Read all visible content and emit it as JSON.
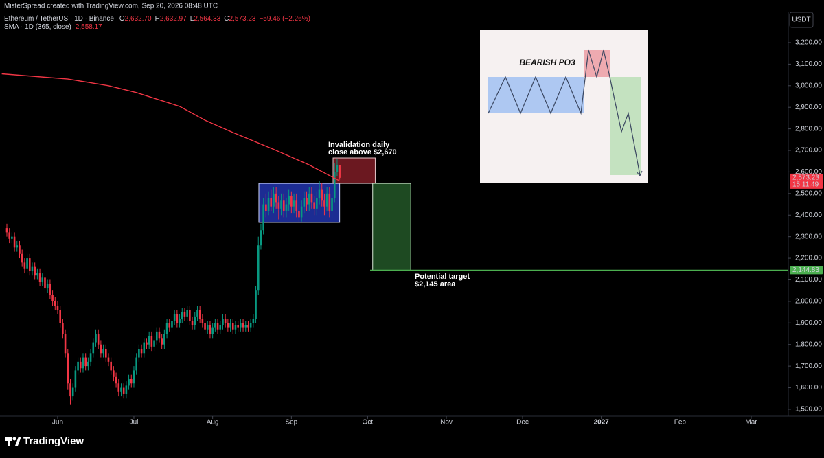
{
  "page": {
    "credit": "MisterSpread created with TradingView.com, Sep 20, 2026 08:48 UTC",
    "brand": "TradingView"
  },
  "chart_data": {
    "type": "candlestick",
    "symbol": "Ethereum / TetherUS · 1D · Binance",
    "quote": [
      {
        "k": "O",
        "v": "2,632.70"
      },
      {
        "k": "H",
        "v": "2,632.97"
      },
      {
        "k": "L",
        "v": "2,564.33"
      },
      {
        "k": "C",
        "v": "2,573.23"
      }
    ],
    "change": "−59.46 (−2.26%)",
    "quote_color": "#f23645",
    "y_unit": "USDT",
    "up_color": "#089981",
    "down_color": "#f23645",
    "xlim": [
      -22.7,
      287.6
    ],
    "xticks": [
      {
        "value": 0,
        "label": "Jun"
      },
      {
        "value": 30,
        "label": "Jul"
      },
      {
        "value": 61,
        "label": "Aug"
      },
      {
        "value": 92,
        "label": "Sep"
      },
      {
        "value": 122,
        "label": "Oct"
      },
      {
        "value": 153,
        "label": "Nov"
      },
      {
        "value": 183,
        "label": "Dec"
      },
      {
        "value": 214,
        "label": "2027"
      },
      {
        "value": 245,
        "label": "Feb"
      },
      {
        "value": 273,
        "label": "Mar"
      }
    ],
    "ylim": [
      1468,
      3340
    ],
    "yticks": [
      {
        "value": 1500,
        "label": "1,500.00"
      },
      {
        "value": 1600,
        "label": "1,600.00"
      },
      {
        "value": 1700,
        "label": "1,700.00"
      },
      {
        "value": 1800,
        "label": "1,800.00"
      },
      {
        "value": 1900,
        "label": "1,900.00"
      },
      {
        "value": 2000,
        "label": "2,000.00"
      },
      {
        "value": 2100,
        "label": "2,100.00"
      },
      {
        "value": 2200,
        "label": "2,200.00"
      },
      {
        "value": 2300,
        "label": "2,300.00"
      },
      {
        "value": 2400,
        "label": "2,400.00"
      },
      {
        "value": 2500,
        "label": "2,500.00"
      },
      {
        "value": 2600,
        "label": "2,600.00"
      },
      {
        "value": 2700,
        "label": "2,700.00"
      },
      {
        "value": 2800,
        "label": "2,800.00"
      },
      {
        "value": 2900,
        "label": "2,900.00"
      },
      {
        "value": 3000,
        "label": "3,000.00"
      },
      {
        "value": 3100,
        "label": "3,100.00"
      },
      {
        "value": 3200,
        "label": "3,200.00"
      }
    ],
    "grid": false,
    "ohlc": [
      [
        -20,
        2340,
        2360,
        2300,
        2320
      ],
      [
        -19,
        2320,
        2340,
        2270,
        2290
      ],
      [
        -18,
        2290,
        2320,
        2270,
        2300
      ],
      [
        -17,
        2300,
        2320,
        2230,
        2250
      ],
      [
        -16,
        2250,
        2280,
        2230,
        2260
      ],
      [
        -15,
        2260,
        2280,
        2200,
        2220
      ],
      [
        -14,
        2220,
        2240,
        2160,
        2180
      ],
      [
        -13,
        2180,
        2200,
        2130,
        2150
      ],
      [
        -12,
        2150,
        2220,
        2130,
        2200
      ],
      [
        -11,
        2200,
        2220,
        2120,
        2140
      ],
      [
        -10,
        2140,
        2180,
        2120,
        2160
      ],
      [
        -9,
        2160,
        2180,
        2100,
        2120
      ],
      [
        -8,
        2120,
        2150,
        2100,
        2130
      ],
      [
        -7,
        2130,
        2150,
        2070,
        2090
      ],
      [
        -6,
        2090,
        2130,
        2070,
        2110
      ],
      [
        -5,
        2110,
        2130,
        2040,
        2060
      ],
      [
        -4,
        2060,
        2100,
        2040,
        2080
      ],
      [
        -3,
        2080,
        2100,
        2010,
        2030
      ],
      [
        -2,
        2030,
        2050,
        1980,
        2000
      ],
      [
        -1,
        2000,
        2020,
        1960,
        1980
      ],
      [
        0,
        1980,
        2000,
        1940,
        1960
      ],
      [
        1,
        1960,
        1980,
        1880,
        1900
      ],
      [
        2,
        1900,
        1920,
        1830,
        1850
      ],
      [
        3,
        1850,
        1870,
        1740,
        1760
      ],
      [
        4,
        1760,
        1780,
        1590,
        1620
      ],
      [
        5,
        1620,
        1640,
        1520,
        1560
      ],
      [
        6,
        1560,
        1620,
        1540,
        1600
      ],
      [
        7,
        1600,
        1700,
        1580,
        1680
      ],
      [
        8,
        1680,
        1740,
        1660,
        1720
      ],
      [
        9,
        1720,
        1740,
        1670,
        1690
      ],
      [
        10,
        1690,
        1760,
        1670,
        1740
      ],
      [
        11,
        1740,
        1760,
        1680,
        1700
      ],
      [
        12,
        1700,
        1740,
        1680,
        1720
      ],
      [
        13,
        1720,
        1780,
        1700,
        1760
      ],
      [
        14,
        1760,
        1830,
        1740,
        1810
      ],
      [
        15,
        1810,
        1870,
        1790,
        1850
      ],
      [
        16,
        1850,
        1870,
        1780,
        1800
      ],
      [
        17,
        1800,
        1820,
        1740,
        1760
      ],
      [
        18,
        1760,
        1800,
        1740,
        1780
      ],
      [
        19,
        1780,
        1800,
        1720,
        1740
      ],
      [
        20,
        1740,
        1760,
        1700,
        1720
      ],
      [
        21,
        1720,
        1740,
        1660,
        1680
      ],
      [
        22,
        1680,
        1700,
        1630,
        1650
      ],
      [
        23,
        1650,
        1670,
        1600,
        1620
      ],
      [
        24,
        1620,
        1640,
        1560,
        1580
      ],
      [
        25,
        1580,
        1620,
        1560,
        1600
      ],
      [
        26,
        1600,
        1620,
        1550,
        1570
      ],
      [
        27,
        1570,
        1630,
        1550,
        1610
      ],
      [
        28,
        1610,
        1660,
        1590,
        1640
      ],
      [
        29,
        1640,
        1660,
        1600,
        1620
      ],
      [
        30,
        1620,
        1700,
        1600,
        1680
      ],
      [
        31,
        1680,
        1760,
        1660,
        1740
      ],
      [
        32,
        1740,
        1800,
        1720,
        1780
      ],
      [
        33,
        1780,
        1800,
        1740,
        1760
      ],
      [
        34,
        1760,
        1830,
        1740,
        1810
      ],
      [
        35,
        1810,
        1830,
        1780,
        1800
      ],
      [
        36,
        1800,
        1860,
        1780,
        1840
      ],
      [
        37,
        1840,
        1860,
        1770,
        1790
      ],
      [
        38,
        1790,
        1840,
        1770,
        1820
      ],
      [
        39,
        1820,
        1880,
        1800,
        1860
      ],
      [
        40,
        1860,
        1880,
        1810,
        1830
      ],
      [
        41,
        1830,
        1850,
        1780,
        1800
      ],
      [
        42,
        1800,
        1870,
        1780,
        1850
      ],
      [
        43,
        1850,
        1920,
        1830,
        1900
      ],
      [
        44,
        1900,
        1920,
        1860,
        1880
      ],
      [
        45,
        1880,
        1930,
        1860,
        1910
      ],
      [
        46,
        1910,
        1960,
        1890,
        1940
      ],
      [
        47,
        1940,
        1960,
        1880,
        1900
      ],
      [
        48,
        1900,
        1940,
        1880,
        1920
      ],
      [
        49,
        1920,
        1970,
        1900,
        1950
      ],
      [
        50,
        1950,
        1970,
        1910,
        1930
      ],
      [
        51,
        1930,
        1980,
        1910,
        1960
      ],
      [
        52,
        1960,
        1980,
        1890,
        1910
      ],
      [
        53,
        1910,
        1930,
        1870,
        1890
      ],
      [
        54,
        1890,
        1950,
        1870,
        1930
      ],
      [
        55,
        1930,
        1980,
        1910,
        1960
      ],
      [
        56,
        1960,
        1980,
        1900,
        1920
      ],
      [
        57,
        1920,
        1940,
        1880,
        1900
      ],
      [
        58,
        1900,
        1920,
        1850,
        1870
      ],
      [
        59,
        1870,
        1910,
        1850,
        1890
      ],
      [
        60,
        1890,
        1910,
        1830,
        1850
      ],
      [
        61,
        1850,
        1900,
        1830,
        1880
      ],
      [
        62,
        1880,
        1920,
        1860,
        1900
      ],
      [
        63,
        1900,
        1920,
        1850,
        1870
      ],
      [
        64,
        1870,
        1910,
        1850,
        1890
      ],
      [
        65,
        1890,
        1940,
        1870,
        1920
      ],
      [
        66,
        1920,
        1940,
        1880,
        1900
      ],
      [
        67,
        1900,
        1920,
        1860,
        1880
      ],
      [
        68,
        1880,
        1920,
        1860,
        1900
      ],
      [
        69,
        1900,
        1920,
        1850,
        1870
      ],
      [
        70,
        1870,
        1910,
        1850,
        1890
      ],
      [
        71,
        1890,
        1910,
        1860,
        1880
      ],
      [
        72,
        1880,
        1920,
        1860,
        1900
      ],
      [
        73,
        1900,
        1920,
        1860,
        1880
      ],
      [
        74,
        1880,
        1910,
        1860,
        1890
      ],
      [
        75,
        1890,
        1910,
        1860,
        1880
      ],
      [
        76,
        1880,
        1920,
        1860,
        1900
      ],
      [
        77,
        1900,
        1940,
        1880,
        1920
      ],
      [
        78,
        1920,
        2070,
        1900,
        2050
      ],
      [
        79,
        2050,
        2300,
        2030,
        2260
      ],
      [
        80,
        2260,
        2360,
        2240,
        2330
      ],
      [
        81,
        2330,
        2480,
        2310,
        2450
      ],
      [
        82,
        2450,
        2500,
        2390,
        2420
      ],
      [
        83,
        2420,
        2510,
        2400,
        2480
      ],
      [
        84,
        2480,
        2520,
        2420,
        2440
      ],
      [
        85,
        2440,
        2530,
        2410,
        2500
      ],
      [
        86,
        2500,
        2530,
        2430,
        2460
      ],
      [
        87,
        2460,
        2490,
        2380,
        2430
      ],
      [
        88,
        2430,
        2500,
        2400,
        2470
      ],
      [
        89,
        2470,
        2500,
        2390,
        2420
      ],
      [
        90,
        2420,
        2480,
        2390,
        2450
      ],
      [
        91,
        2450,
        2520,
        2420,
        2490
      ],
      [
        92,
        2490,
        2510,
        2410,
        2440
      ],
      [
        93,
        2440,
        2500,
        2410,
        2470
      ],
      [
        94,
        2470,
        2500,
        2390,
        2420
      ],
      [
        95,
        2420,
        2450,
        2370,
        2390
      ],
      [
        96,
        2390,
        2470,
        2370,
        2440
      ],
      [
        97,
        2440,
        2510,
        2410,
        2480
      ],
      [
        98,
        2480,
        2510,
        2420,
        2450
      ],
      [
        99,
        2450,
        2530,
        2420,
        2500
      ],
      [
        100,
        2500,
        2530,
        2430,
        2460
      ],
      [
        101,
        2460,
        2490,
        2400,
        2430
      ],
      [
        102,
        2430,
        2510,
        2400,
        2480
      ],
      [
        103,
        2480,
        2560,
        2450,
        2520
      ],
      [
        104,
        2520,
        2550,
        2440,
        2470
      ],
      [
        105,
        2470,
        2500,
        2400,
        2440
      ],
      [
        106,
        2440,
        2530,
        2420,
        2500
      ],
      [
        107,
        2500,
        2530,
        2390,
        2420
      ],
      [
        108,
        2420,
        2510,
        2390,
        2480
      ],
      [
        109,
        2480,
        2640,
        2460,
        2600
      ],
      [
        110,
        2600,
        2660,
        2580,
        2632.7
      ],
      [
        111,
        2632.7,
        2632.97,
        2564.33,
        2573.23
      ]
    ],
    "sma": {
      "name": "SMA · 1D (365, close)",
      "value_label": "2,558.17",
      "color": "#f23645",
      "x": [
        -22,
        4,
        20,
        31,
        48,
        58,
        69,
        85,
        99,
        110,
        111
      ],
      "values": [
        3055,
        3031,
        3000,
        2968,
        2904,
        2840,
        2783,
        2705,
        2633,
        2565,
        2558.17
      ]
    },
    "zones": [
      {
        "x": [
          79.2,
          111
        ],
        "y": [
          2366,
          2547
        ],
        "color": "#1c2c93",
        "border": "#d0d8ff"
      },
      {
        "x": [
          108.4,
          125
        ],
        "y": [
          2547,
          2665
        ],
        "color": "#6b1820",
        "border": "#e8c8cc"
      },
      {
        "x": [
          124,
          139
        ],
        "y": [
          2143,
          2547
        ],
        "color": "#1e4a22",
        "border": "#d8ecd6"
      }
    ],
    "levels": [
      {
        "value": 2144.83,
        "x": 123,
        "color": "#4caf50"
      }
    ],
    "annotations": [
      {
        "lines": [
          "Invalidation daily",
          "close above $2,670"
        ]
      },
      {
        "lines": [
          "Potential target",
          "$2,145 area"
        ]
      }
    ],
    "price_labels": [
      {
        "value": 2573.23,
        "label": "2,573.23",
        "countdown": "15:11:49",
        "color": "#f23645"
      },
      {
        "value": 2144.83,
        "label": "2,144.83",
        "color": "#4caf50"
      }
    ],
    "inset_title": "BEARISH PO3"
  }
}
